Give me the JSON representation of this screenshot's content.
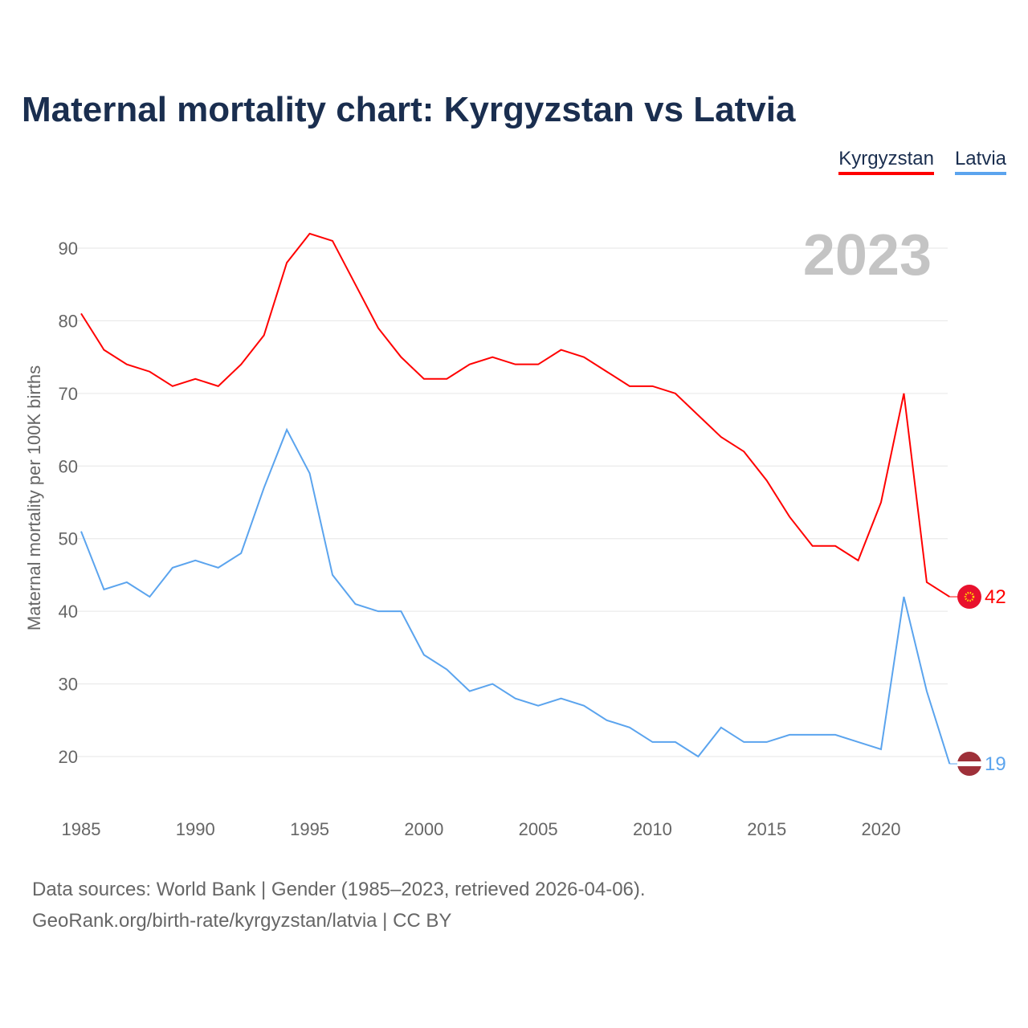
{
  "title": "Maternal mortality chart: Kyrgyzstan vs Latvia",
  "source_line1": "Data sources: World Bank | Gender (1985–2023, retrieved 2026-04-06).",
  "source_line2": "GeoRank.org/birth-rate/kyrgyzstan/latvia | CC BY",
  "chart_data": {
    "type": "line",
    "title": "Maternal mortality chart: Kyrgyzstan vs Latvia",
    "year_label": "2023",
    "ylabel": "Maternal mortality per 100K births",
    "xlabel": "",
    "ylim": [
      13,
      97
    ],
    "xlim": [
      1985,
      2023
    ],
    "yticks": [
      20,
      30,
      40,
      50,
      60,
      70,
      80,
      90
    ],
    "xticks": [
      1985,
      1990,
      1995,
      2000,
      2005,
      2010,
      2015,
      2020
    ],
    "grid": true,
    "legend_placement": "top-right",
    "x": [
      1985,
      1986,
      1987,
      1988,
      1989,
      1990,
      1991,
      1992,
      1993,
      1994,
      1995,
      1996,
      1997,
      1998,
      1999,
      2000,
      2001,
      2002,
      2003,
      2004,
      2005,
      2006,
      2007,
      2008,
      2009,
      2010,
      2011,
      2012,
      2013,
      2014,
      2015,
      2016,
      2017,
      2018,
      2019,
      2020,
      2021,
      2022,
      2023
    ],
    "series": [
      {
        "name": "Kyrgyzstan",
        "color": "#ff0000",
        "end_label": "42",
        "values": [
          81,
          76,
          74,
          73,
          71,
          72,
          71,
          74,
          78,
          88,
          92,
          91,
          85,
          79,
          75,
          72,
          72,
          74,
          75,
          74,
          74,
          76,
          75,
          73,
          71,
          71,
          70,
          67,
          64,
          62,
          58,
          53,
          49,
          49,
          47,
          55,
          70,
          44,
          42
        ]
      },
      {
        "name": "Latvia",
        "color": "#5ba4ee",
        "end_label": "19",
        "values": [
          51,
          43,
          44,
          42,
          46,
          47,
          46,
          48,
          57,
          65,
          59,
          45,
          41,
          40,
          40,
          34,
          32,
          29,
          30,
          28,
          27,
          28,
          27,
          25,
          24,
          22,
          22,
          20,
          24,
          22,
          22,
          23,
          23,
          23,
          22,
          21,
          42,
          29,
          19
        ]
      }
    ]
  }
}
